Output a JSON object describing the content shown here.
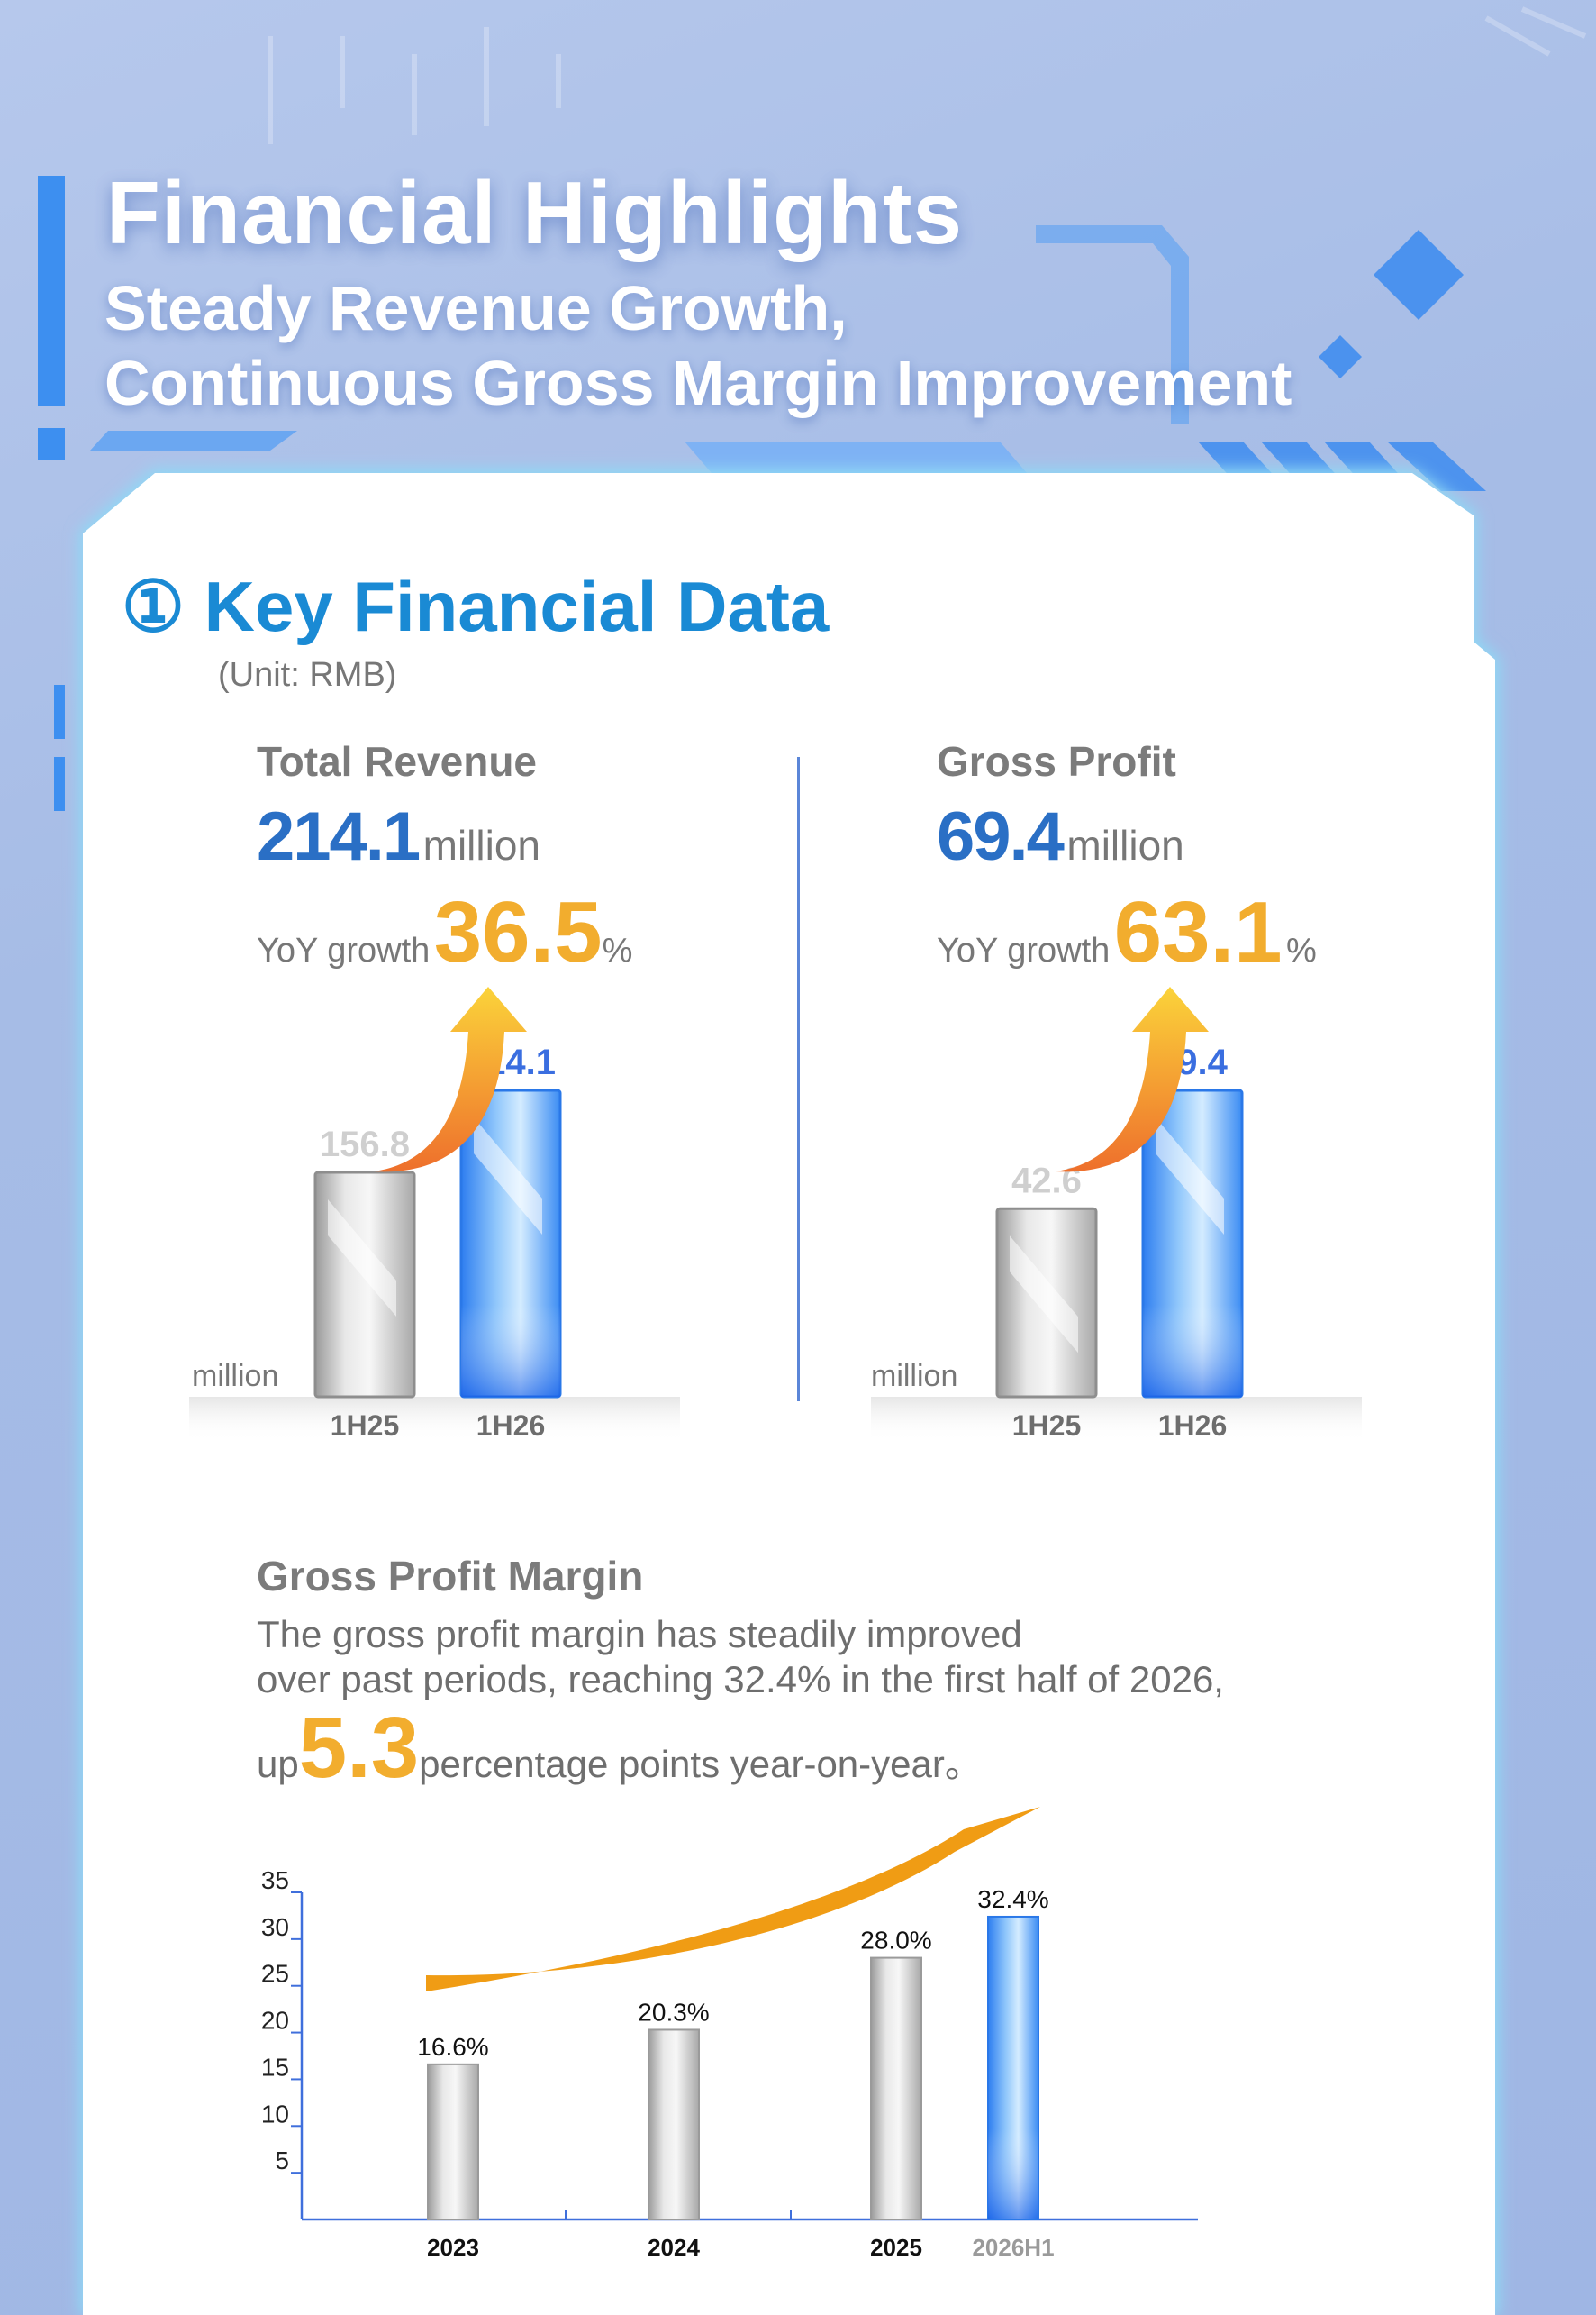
{
  "header": {
    "title": "Financial Highlights",
    "subtitle_line1": "Steady Revenue Growth,",
    "subtitle_line2": "Continuous Gross Margin Improvement"
  },
  "section": {
    "number": "①",
    "title": "Key Financial Data",
    "unit_note": "(Unit: RMB)"
  },
  "revenue": {
    "label": "Total Revenue",
    "value": "214.1",
    "unit": "million",
    "yoy_label": "YoY growth",
    "yoy_value": "36.5",
    "yoy_sign": "%",
    "axis_unit": "million"
  },
  "gross_profit": {
    "label": "Gross Profit",
    "value": "69.4",
    "unit": "million",
    "yoy_label": "YoY growth",
    "yoy_value": "63.1",
    "yoy_sign": "%",
    "axis_unit": "million"
  },
  "margin": {
    "label": "Gross Profit Margin",
    "line1": "The gross profit margin has steadily improved",
    "line2": "over past periods, reaching 32.4% in the first half of 2026,",
    "line3_prefix": "up",
    "line3_value": "5.3",
    "line3_suffix": "percentage points year-on-year。"
  },
  "colors": {
    "accent_orange": "#f2ad2e",
    "blue_text": "#2a6fc5",
    "bar_highlight": "#3a8cf0",
    "bar_gray": "#c4c4c4"
  },
  "chart_data": [
    {
      "type": "bar",
      "categories": [
        "1H25",
        "1H26"
      ],
      "values": [
        156.8,
        214.1
      ],
      "value_labels": [
        "156.8",
        "214.1"
      ],
      "ylabel": "million",
      "highlight_index": 1
    },
    {
      "type": "bar",
      "categories": [
        "1H25",
        "1H26"
      ],
      "values": [
        42.6,
        69.4
      ],
      "value_labels": [
        "42.6",
        "69.4"
      ],
      "ylabel": "million",
      "highlight_index": 1
    },
    {
      "type": "bar",
      "categories": [
        "2023",
        "2024",
        "2025",
        "2026H1"
      ],
      "values": [
        16.6,
        20.3,
        28.0,
        32.4
      ],
      "value_labels": [
        "16.6%",
        "20.3%",
        "28.0%",
        "32.4%"
      ],
      "ylim": [
        0,
        35
      ],
      "yticks": [
        "5",
        "10",
        "15",
        "20",
        "25",
        "30",
        "35"
      ],
      "highlight_index": 3
    }
  ]
}
